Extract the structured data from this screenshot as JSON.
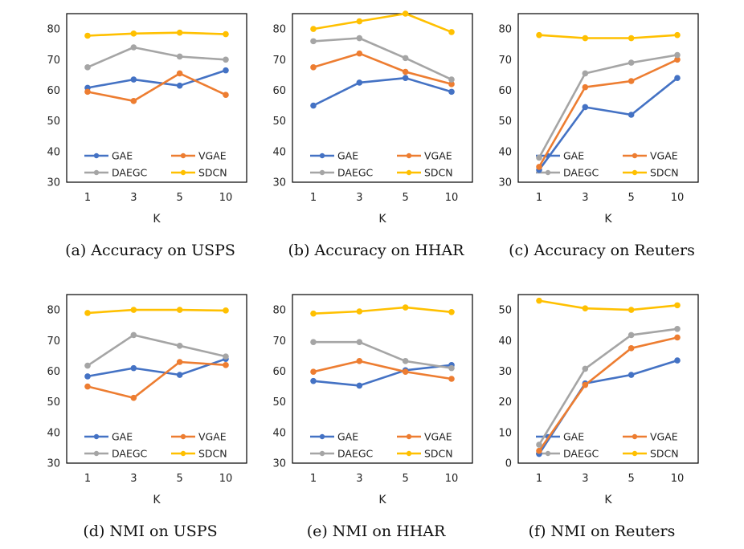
{
  "colors": {
    "GAE": "#4472C4",
    "VGAE": "#ED7D31",
    "DAEGC": "#A5A5A5",
    "SDCN": "#FFC000",
    "frame": "#000000"
  },
  "chart_data": [
    {
      "type": "line",
      "caption": "(a)  Accuracy on USPS",
      "xlabel": "K",
      "ylabel": "",
      "categories": [
        "1",
        "3",
        "5",
        "10"
      ],
      "ylim": [
        30,
        85
      ],
      "yticks": [
        30,
        40,
        50,
        60,
        70,
        80
      ],
      "grid": false,
      "legend_position": "bottom",
      "series": [
        {
          "name": "GAE",
          "values": [
            60.8,
            63.5,
            61.5,
            66.5
          ]
        },
        {
          "name": "VGAE",
          "values": [
            59.5,
            56.5,
            65.5,
            58.5
          ]
        },
        {
          "name": "DAEGC",
          "values": [
            67.5,
            74.0,
            71.0,
            70.0
          ]
        },
        {
          "name": "SDCN",
          "values": [
            77.8,
            78.5,
            78.8,
            78.3
          ]
        }
      ]
    },
    {
      "type": "line",
      "caption": "(b)  Accuracy on HHAR",
      "xlabel": "K",
      "ylabel": "",
      "categories": [
        "1",
        "3",
        "5",
        "10"
      ],
      "ylim": [
        30,
        85
      ],
      "yticks": [
        30,
        40,
        50,
        60,
        70,
        80
      ],
      "grid": false,
      "legend_position": "bottom",
      "series": [
        {
          "name": "GAE",
          "values": [
            55.0,
            62.5,
            64.0,
            59.5
          ]
        },
        {
          "name": "VGAE",
          "values": [
            67.5,
            72.0,
            66.0,
            62.0
          ]
        },
        {
          "name": "DAEGC",
          "values": [
            76.0,
            77.0,
            70.5,
            63.5
          ]
        },
        {
          "name": "SDCN",
          "values": [
            80.0,
            82.5,
            85.0,
            79.0
          ]
        }
      ]
    },
    {
      "type": "line",
      "caption": "(c)  Accuracy on Reuters",
      "xlabel": "K",
      "ylabel": "",
      "categories": [
        "1",
        "3",
        "5",
        "10"
      ],
      "ylim": [
        30,
        85
      ],
      "yticks": [
        30,
        40,
        50,
        60,
        70,
        80
      ],
      "grid": false,
      "legend_position": "bottom",
      "series": [
        {
          "name": "GAE",
          "values": [
            34.0,
            54.5,
            52.0,
            64.0
          ]
        },
        {
          "name": "VGAE",
          "values": [
            35.0,
            61.0,
            63.0,
            70.0
          ]
        },
        {
          "name": "DAEGC",
          "values": [
            38.0,
            65.5,
            69.0,
            71.5
          ]
        },
        {
          "name": "SDCN",
          "values": [
            78.0,
            77.0,
            77.0,
            78.0
          ]
        }
      ]
    },
    {
      "type": "line",
      "caption": "(d)  NMI on USPS",
      "xlabel": "K",
      "ylabel": "",
      "categories": [
        "1",
        "3",
        "5",
        "10"
      ],
      "ylim": [
        30,
        85
      ],
      "yticks": [
        30,
        40,
        50,
        60,
        70,
        80
      ],
      "grid": false,
      "legend_position": "bottom",
      "series": [
        {
          "name": "GAE",
          "values": [
            58.3,
            61.0,
            58.8,
            64.0
          ]
        },
        {
          "name": "VGAE",
          "values": [
            55.0,
            51.3,
            63.0,
            62.0
          ]
        },
        {
          "name": "DAEGC",
          "values": [
            61.8,
            71.8,
            68.3,
            64.8
          ]
        },
        {
          "name": "SDCN",
          "values": [
            79.0,
            80.0,
            80.0,
            79.8
          ]
        }
      ]
    },
    {
      "type": "line",
      "caption": "(e)  NMI on HHAR",
      "xlabel": "K",
      "ylabel": "",
      "categories": [
        "1",
        "3",
        "5",
        "10"
      ],
      "ylim": [
        30,
        85
      ],
      "yticks": [
        30,
        40,
        50,
        60,
        70,
        80
      ],
      "grid": false,
      "legend_position": "bottom",
      "series": [
        {
          "name": "GAE",
          "values": [
            56.8,
            55.3,
            60.3,
            62.0
          ]
        },
        {
          "name": "VGAE",
          "values": [
            59.8,
            63.3,
            59.8,
            57.5
          ]
        },
        {
          "name": "DAEGC",
          "values": [
            69.5,
            69.5,
            63.3,
            61.0
          ]
        },
        {
          "name": "SDCN",
          "values": [
            78.8,
            79.5,
            80.8,
            79.3
          ]
        }
      ]
    },
    {
      "type": "line",
      "caption": "(f)  NMI on Reuters",
      "xlabel": "K",
      "ylabel": "",
      "categories": [
        "1",
        "3",
        "5",
        "10"
      ],
      "ylim": [
        0,
        55
      ],
      "yticks": [
        0,
        10,
        20,
        30,
        40,
        50
      ],
      "grid": false,
      "legend_position": "bottom",
      "series": [
        {
          "name": "GAE",
          "values": [
            3.0,
            26.0,
            28.8,
            33.5
          ]
        },
        {
          "name": "VGAE",
          "values": [
            4.0,
            25.5,
            37.5,
            41.0
          ]
        },
        {
          "name": "DAEGC",
          "values": [
            6.0,
            30.8,
            41.8,
            43.8
          ]
        },
        {
          "name": "SDCN",
          "values": [
            53.0,
            50.5,
            50.0,
            51.5
          ]
        }
      ]
    }
  ]
}
